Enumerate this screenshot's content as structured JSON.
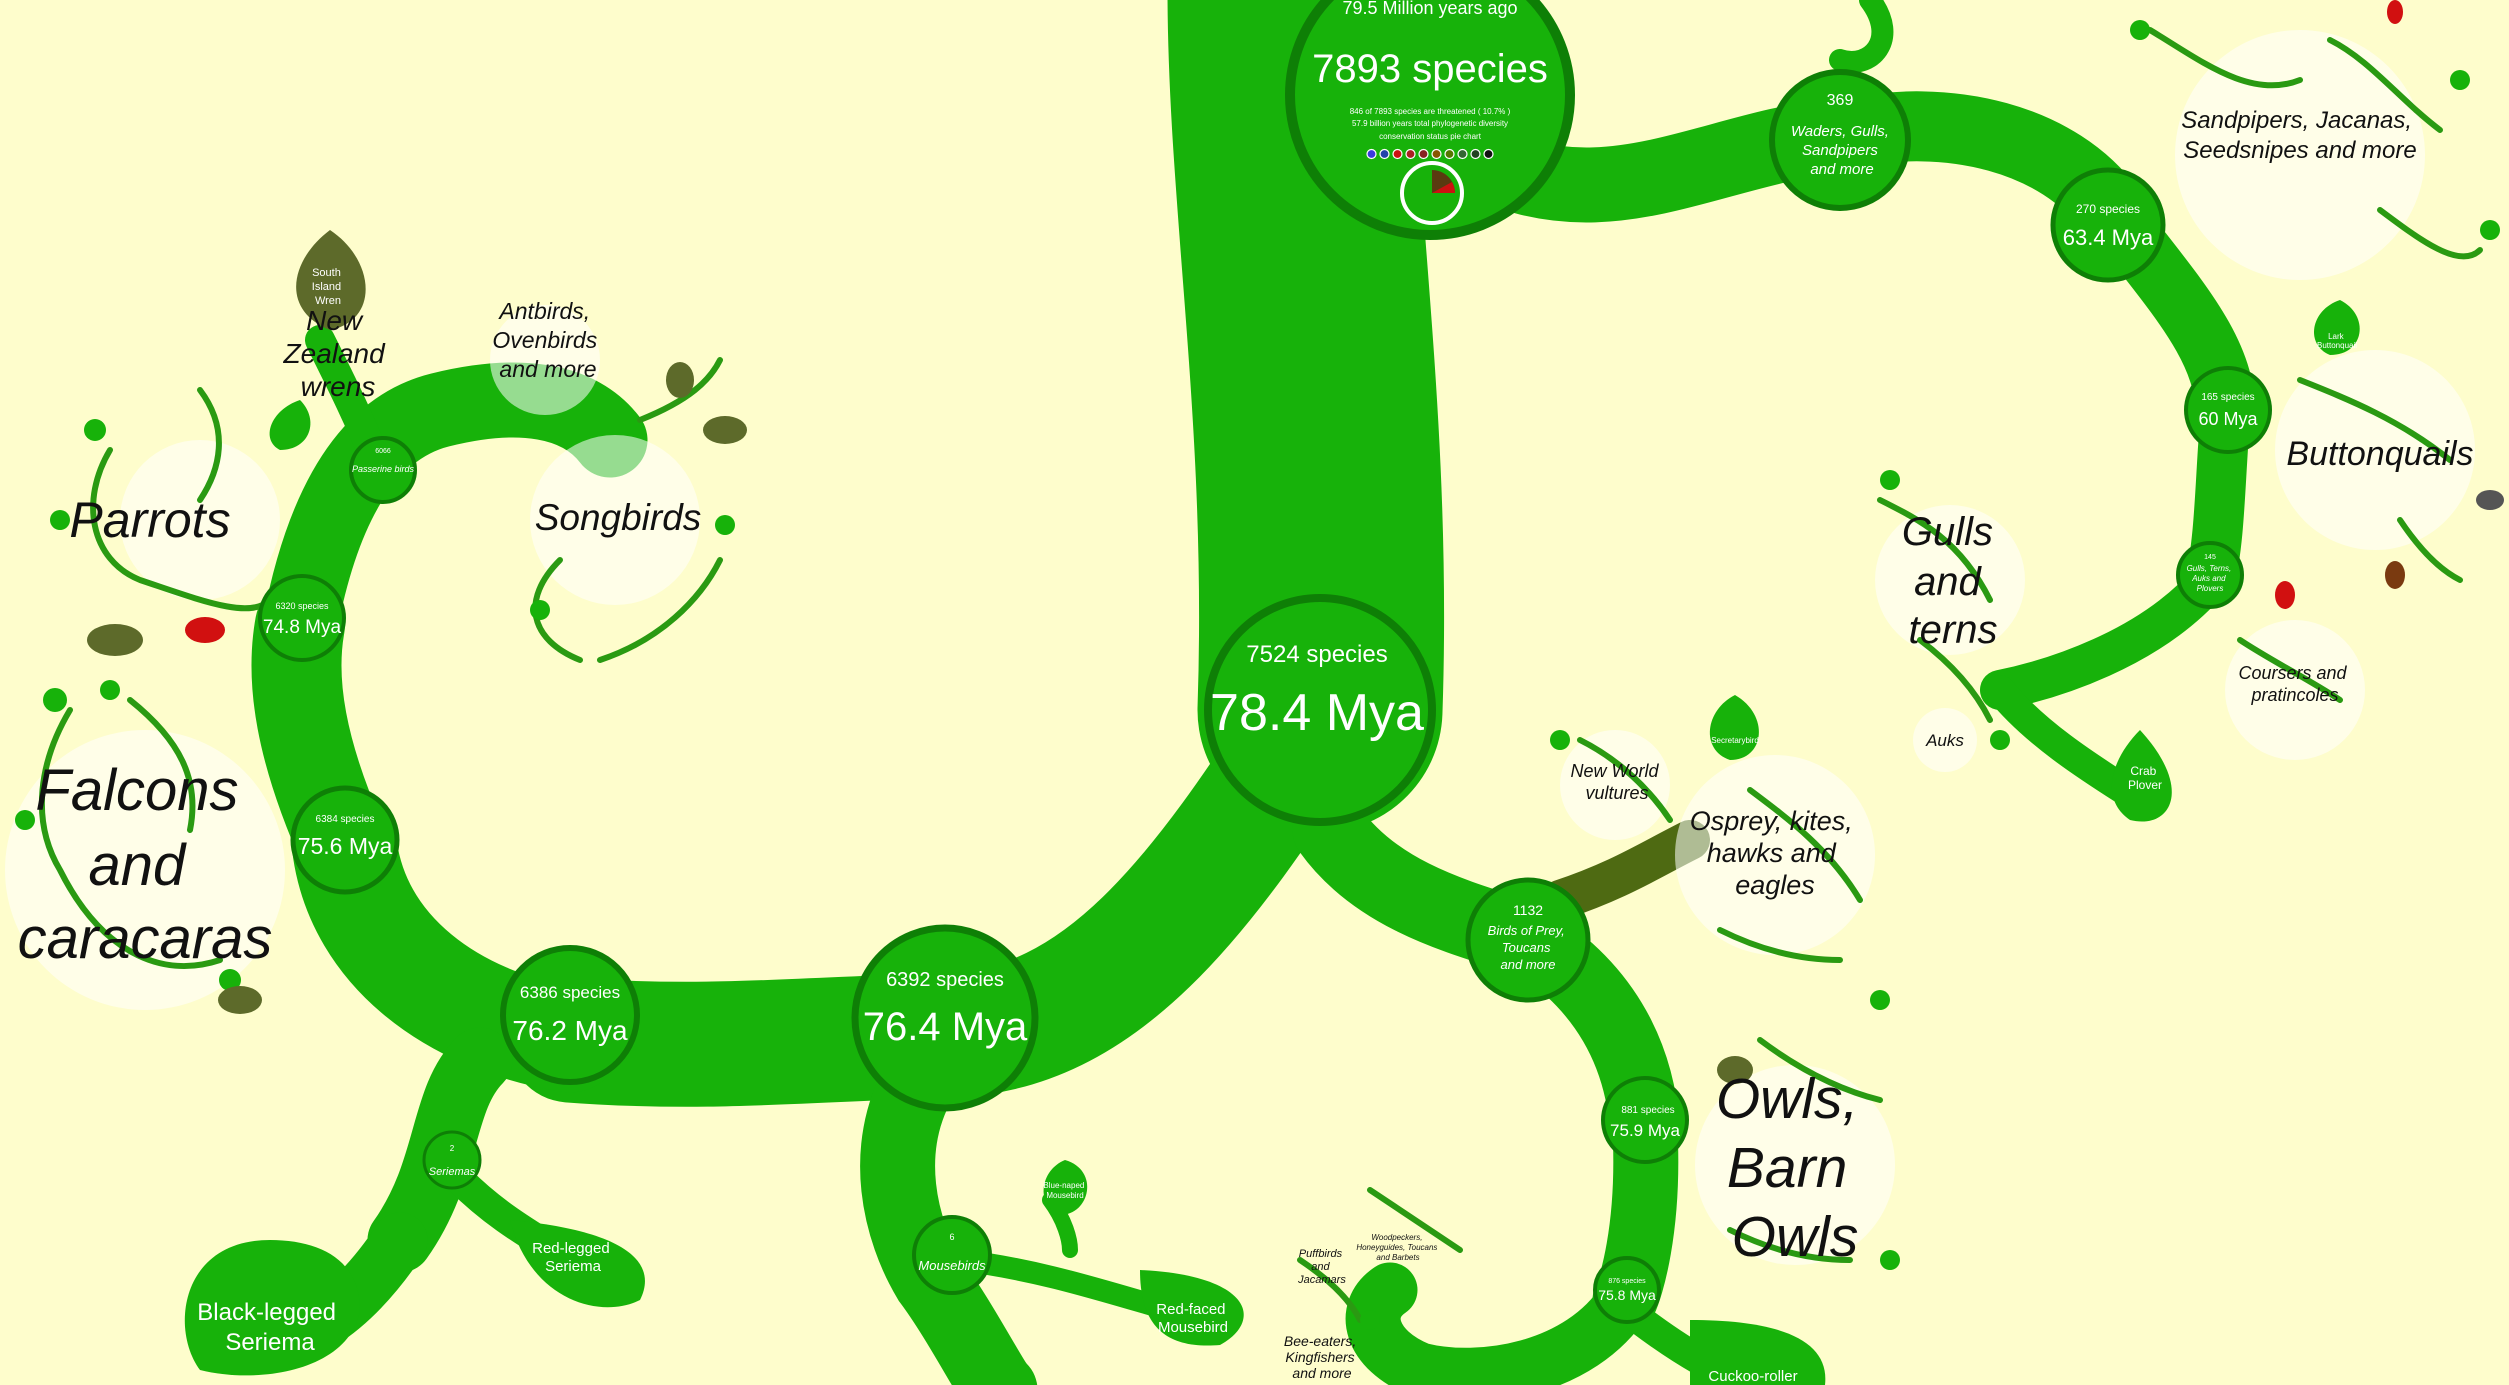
{
  "root": {
    "time": "79.5 Million years ago",
    "species": "7893 species",
    "threatened": "846 of 7893 species are threatened ( 10.7% )",
    "phylo": "57.9 billion years total phylogenetic diversity",
    "pie_note": "conservation status pie chart"
  },
  "nodes": {
    "n7524": {
      "species": "7524 species",
      "mya": "78.4 Mya"
    },
    "n6392": {
      "species": "6392 species",
      "mya": "76.4 Mya"
    },
    "n6386": {
      "species": "6386 species",
      "mya": "76.2 Mya"
    },
    "n6384": {
      "species": "6384 species",
      "mya": "75.6 Mya"
    },
    "n6320": {
      "species": "6320 species",
      "mya": "74.8 Mya"
    },
    "n6066": {
      "species": "6066",
      "mya": "Passerine birds"
    },
    "n369": {
      "species": "369",
      "name": "Waders, Gulls, Sandpipers and more"
    },
    "n270": {
      "species": "270 species",
      "mya": "63.4 Mya"
    },
    "n165": {
      "species": "165 species",
      "mya": "60 Mya"
    },
    "n145": {
      "species": "145",
      "name": "Gulls, Terns, Auks and Plovers"
    },
    "n1132": {
      "species": "1132",
      "name": "Birds of Prey, Toucans and more"
    },
    "n881": {
      "species": "881 species",
      "mya": "75.9 Mya"
    },
    "n876": {
      "species": "876 species",
      "mya": "75.8 Mya"
    },
    "n2": {
      "species": "2",
      "name": "Seriemas"
    },
    "n6": {
      "species": "6",
      "name": "Mousebirds"
    }
  },
  "labels": {
    "parrots": "Parrots",
    "falcons": [
      "Falcons",
      "and",
      "caracaras"
    ],
    "nz_wrens": [
      "New",
      "Zealand",
      "wrens"
    ],
    "antbirds": [
      "Antbirds,",
      "Ovenbirds",
      "and more"
    ],
    "songbirds": "Songbirds",
    "sandpipers": [
      "Sandpipers, Jacanas,",
      "Seedsnipes and more"
    ],
    "buttonquails": "Buttonquails",
    "gulls": [
      "Gulls",
      "and",
      "terns"
    ],
    "coursers": [
      "Coursers and",
      "pratincoles"
    ],
    "auks": "Auks",
    "nw_vultures": [
      "New World",
      "vultures"
    ],
    "osprey": [
      "Osprey, kites,",
      "hawks and",
      "eagles"
    ],
    "owls": [
      "Owls,",
      "Barn",
      "Owls"
    ],
    "puffbirds": [
      "Puffbirds",
      "and",
      "Jacamars"
    ],
    "woodpeckers": [
      "Woodpeckers,",
      "Honeyguides, Toucans",
      "and Barbets"
    ],
    "bee_eaters": [
      "Bee-eaters,",
      "Kingfishers",
      "and more"
    ]
  },
  "leaves": {
    "south_island_wren": [
      "South",
      "Island",
      "Wren"
    ],
    "black_legged_seriema": [
      "Black-legged",
      "Seriema"
    ],
    "red_legged_seriema": [
      "Red-legged",
      "Seriema"
    ],
    "blue_naped_mousebird": [
      "Blue-naped",
      "Mousebird"
    ],
    "red_faced_mousebird": [
      "Red-faced",
      "Mousebird"
    ],
    "lark_buttonquail": [
      "Lark",
      "Buttonquail"
    ],
    "crab_plover": [
      "Crab",
      "Plover"
    ],
    "secretarybird": "Secretarybird",
    "cuckoo_roller": "Cuckoo-roller"
  },
  "status_dot_colors": [
    "#3a3adf",
    "#2244aa",
    "#cc1111",
    "#aa2222",
    "#882222",
    "#885500",
    "#557700",
    "#336633",
    "#224422",
    "#111111"
  ],
  "colors": {
    "background": "#fefdcc",
    "branch": "#17b20a",
    "node_border": "#0e7f06",
    "dark_leaf": "#5d6a2a",
    "threatened_leaf": "#d11010"
  }
}
